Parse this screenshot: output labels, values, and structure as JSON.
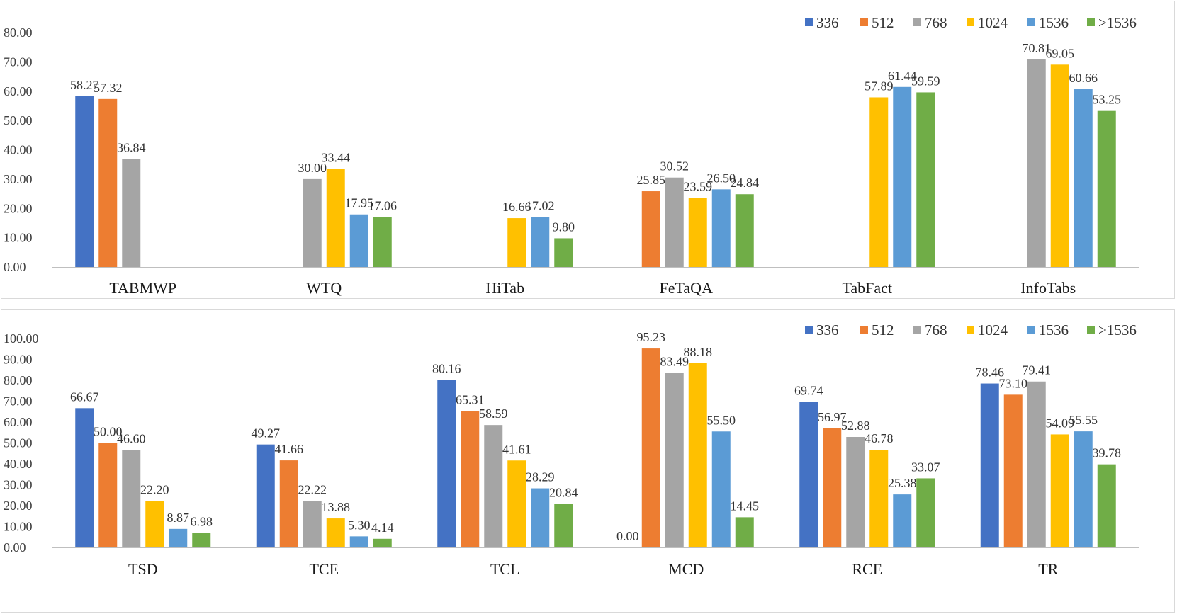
{
  "colors": [
    "#4472C4",
    "#ED7D31",
    "#A5A5A5",
    "#FFC000",
    "#5B9BD5",
    "#70AD47"
  ],
  "chart_data": [
    {
      "type": "bar",
      "categories": [
        "TABMWP",
        "WTQ",
        "HiTab",
        "FeTaQA",
        "TabFact",
        "InfoTabs"
      ],
      "series": [
        {
          "name": "336",
          "values": [
            58.27,
            null,
            null,
            null,
            null,
            null
          ]
        },
        {
          "name": "512",
          "values": [
            57.32,
            null,
            null,
            25.85,
            null,
            null
          ]
        },
        {
          "name": "768",
          "values": [
            36.84,
            30.0,
            null,
            30.52,
            null,
            70.81
          ]
        },
        {
          "name": "1024",
          "values": [
            null,
            33.44,
            16.66,
            23.59,
            57.89,
            69.05
          ]
        },
        {
          "name": "1536",
          "values": [
            null,
            17.95,
            17.02,
            26.5,
            61.44,
            60.66
          ]
        },
        {
          "name": ">1536",
          "values": [
            null,
            17.06,
            9.8,
            24.84,
            59.59,
            53.25
          ]
        }
      ],
      "yticks": [
        "0.00",
        "10.00",
        "20.00",
        "30.00",
        "40.00",
        "50.00",
        "60.00",
        "70.00",
        "80.00"
      ],
      "ylim": [
        0,
        80
      ],
      "grid": false,
      "legend": "top-right",
      "title": "",
      "xlabel": "",
      "ylabel": ""
    },
    {
      "type": "bar",
      "categories": [
        "TSD",
        "TCE",
        "TCL",
        "MCD",
        "RCE",
        "TR"
      ],
      "series": [
        {
          "name": "336",
          "values": [
            66.67,
            49.27,
            80.16,
            0.0,
            69.74,
            78.46
          ]
        },
        {
          "name": "512",
          "values": [
            50.0,
            41.66,
            65.31,
            95.23,
            56.97,
            73.1
          ]
        },
        {
          "name": "768",
          "values": [
            46.6,
            22.22,
            58.59,
            83.49,
            52.88,
            79.41
          ]
        },
        {
          "name": "1024",
          "values": [
            22.2,
            13.88,
            41.61,
            88.18,
            46.78,
            54.09
          ]
        },
        {
          "name": "1536",
          "values": [
            8.87,
            5.3,
            28.29,
            55.5,
            25.38,
            55.55
          ]
        },
        {
          "name": ">1536",
          "values": [
            6.98,
            4.14,
            20.84,
            14.45,
            33.07,
            39.78
          ]
        }
      ],
      "yticks": [
        "0.00",
        "10.00",
        "20.00",
        "30.00",
        "40.00",
        "50.00",
        "60.00",
        "70.00",
        "80.00",
        "90.00",
        "100.00"
      ],
      "ylim": [
        0,
        100
      ],
      "grid": false,
      "legend": "top-right",
      "title": "",
      "xlabel": "",
      "ylabel": ""
    }
  ]
}
